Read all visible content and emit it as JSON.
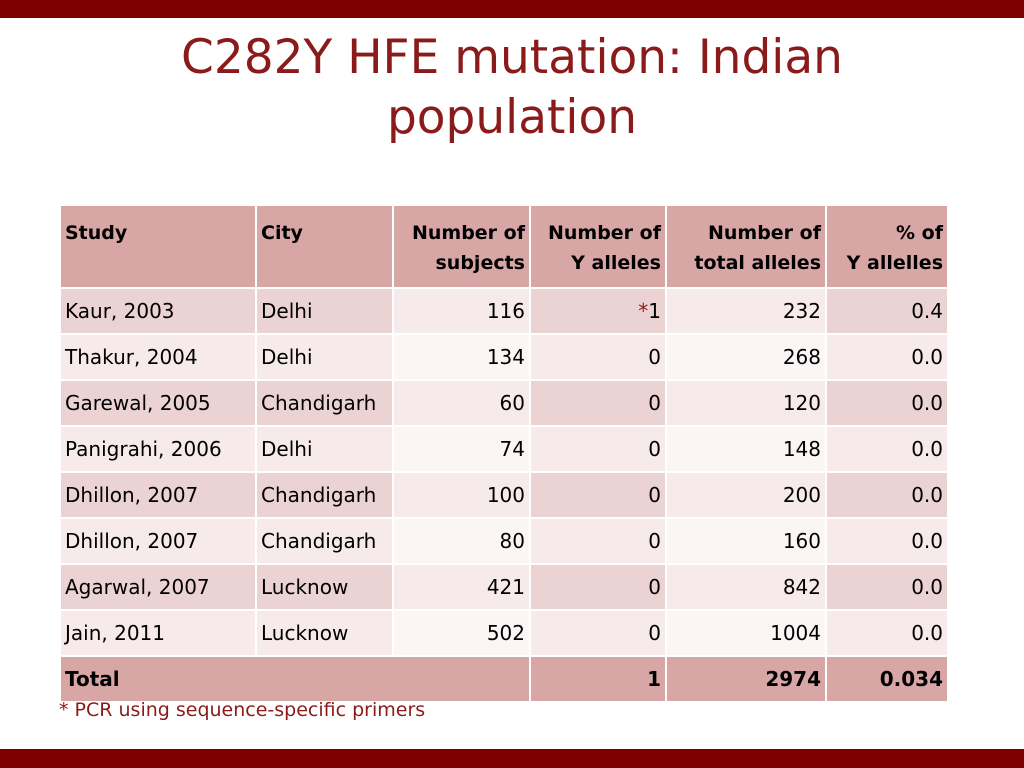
{
  "slide": {
    "title_line1": "C282Y HFE mutation: Indian",
    "title_line2": "population",
    "footnote": "* PCR using sequence-specific primers",
    "colors": {
      "accent_bar": "#7f0000",
      "title_text": "#8b1a1a",
      "header_fill": "#d9a6a6",
      "row_fill_dark": "#ecd3d3",
      "row_fill_light": "#f6eaea"
    }
  },
  "table": {
    "headers": {
      "study": "Study",
      "city": "City",
      "subjects_line1": "Number of",
      "subjects_line2": "subjects",
      "y_alleles_line1": "Number of",
      "y_alleles_line2": "Y alleles",
      "total_alleles_line1": "Number of",
      "total_alleles_line2": "total alleles",
      "pct_line1": "% of",
      "pct_line2": "Y allelles"
    },
    "rows": [
      {
        "study": "Kaur, 2003",
        "city": "Delhi",
        "subjects": "116",
        "y_mark": "*",
        "y_alleles": "1",
        "total_alleles": "232",
        "pct": "0.4"
      },
      {
        "study": "Thakur, 2004",
        "city": "Delhi",
        "subjects": "134",
        "y_mark": "",
        "y_alleles": "0",
        "total_alleles": "268",
        "pct": "0.0"
      },
      {
        "study": "Garewal, 2005",
        "city": "Chandigarh",
        "subjects": "60",
        "y_mark": "",
        "y_alleles": "0",
        "total_alleles": "120",
        "pct": "0.0"
      },
      {
        "study": "Panigrahi, 2006",
        "city": "Delhi",
        "subjects": "74",
        "y_mark": "",
        "y_alleles": "0",
        "total_alleles": "148",
        "pct": "0.0"
      },
      {
        "study": "Dhillon, 2007",
        "city": "Chandigarh",
        "subjects": "100",
        "y_mark": "",
        "y_alleles": "0",
        "total_alleles": "200",
        "pct": "0.0"
      },
      {
        "study": "Dhillon, 2007",
        "city": "Chandigarh",
        "subjects": "80",
        "y_mark": "",
        "y_alleles": "0",
        "total_alleles": "160",
        "pct": "0.0"
      },
      {
        "study": "Agarwal, 2007",
        "city": "Lucknow",
        "subjects": "421",
        "y_mark": "",
        "y_alleles": "0",
        "total_alleles": "842",
        "pct": "0.0"
      },
      {
        "study": "Jain, 2011",
        "city": "Lucknow",
        "subjects": "502",
        "y_mark": "",
        "y_alleles": "0",
        "total_alleles": "1004",
        "pct": "0.0"
      }
    ],
    "total": {
      "label": "Total",
      "y_alleles": "1",
      "total_alleles": "2974",
      "pct": "0.034"
    }
  }
}
